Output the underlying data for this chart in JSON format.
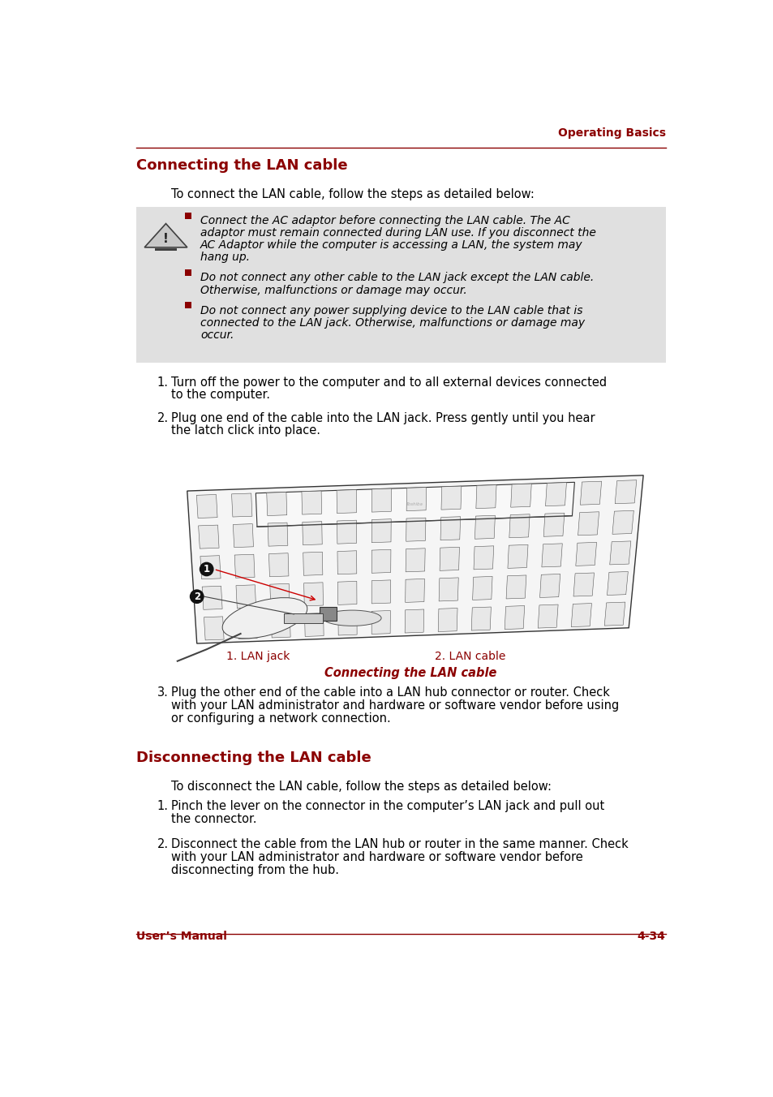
{
  "page_width": 9.54,
  "page_height": 13.52,
  "bg_color": "#ffffff",
  "header_text": "Operating Basics",
  "header_color": "#8B0000",
  "header_line_color": "#8B0000",
  "footer_left": "User’s Manual",
  "footer_right": "4-34",
  "footer_color": "#8B0000",
  "footer_line_color": "#8B0000",
  "section1_title": "Connecting the LAN cable",
  "section1_title_color": "#8B0000",
  "section1_intro": "To connect the LAN cable, follow the steps as detailed below:",
  "warning_bg": "#e0e0e0",
  "warning_bullet_color": "#8B0000",
  "warning_bullets": [
    "Connect the AC adaptor before connecting the LAN cable. The AC adaptor must remain connected during LAN use. If you disconnect the AC Adaptor while the computer is accessing a LAN, the system may hang up.",
    "Do not connect any other cable to the LAN jack except the LAN cable. Otherwise, malfunctions or damage may occur.",
    "Do not connect any power supplying device to the LAN cable that is connected to the LAN jack. Otherwise, malfunctions or damage may occur."
  ],
  "steps_section1": [
    "Turn off the power to the computer and to all external devices connected to the computer.",
    "Plug one end of the cable into the LAN jack. Press gently until you hear the latch click into place."
  ],
  "step3_section1": "Plug the other end of the cable into a LAN hub connector or router. Check with your LAN administrator and hardware or software vendor before using or configuring a network connection.",
  "figure_caption": "Connecting the LAN cable",
  "figure_caption_color": "#8B0000",
  "label1": "1. LAN jack",
  "label2": "2. LAN cable",
  "label_color": "#8B0000",
  "section2_title": "Disconnecting the LAN cable",
  "section2_title_color": "#8B0000",
  "section2_intro": "To disconnect the LAN cable, follow the steps as detailed below:",
  "steps_section2": [
    "Pinch the lever on the connector in the computer’s LAN jack and pull out the connector.",
    "Disconnect the cable from the LAN hub or router in the same manner. Check with your LAN administrator and hardware or software vendor before disconnecting from the hub."
  ],
  "text_color": "#000000",
  "body_fontsize": 10.5,
  "title_fontsize": 13,
  "header_fontsize": 10,
  "footer_fontsize": 10
}
